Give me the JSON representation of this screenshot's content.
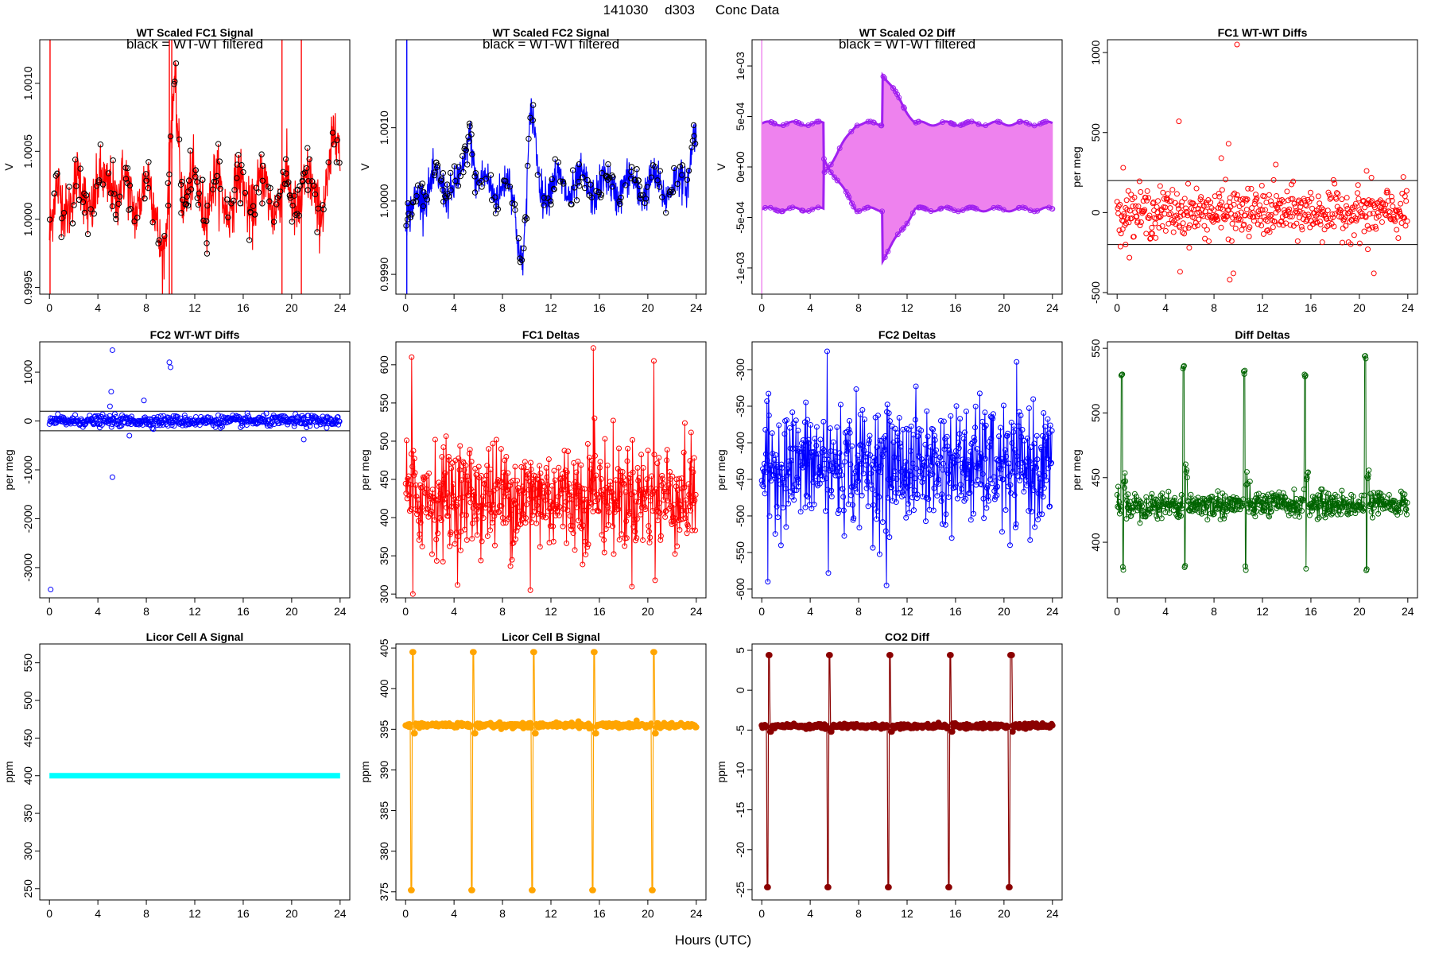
{
  "figure": {
    "title_parts": [
      "141030",
      "d303",
      "Conc Data"
    ],
    "xlabel": "Hours (UTC)"
  },
  "chart_data": [
    {
      "id": "p1",
      "type": "line",
      "title": "WT Scaled FC1 Signal",
      "annotation": "black = WT-WT filtered",
      "ylabel": "V",
      "xlim": [
        -0.8,
        24.8
      ],
      "ylim": [
        0.99945,
        1.00132
      ],
      "xticks": [
        0,
        4,
        8,
        12,
        16,
        20,
        24
      ],
      "yticks": [
        0.9995,
        1.0,
        1.0005,
        1.001
      ],
      "ytick_labels": [
        "0.9995",
        "1.0000",
        "1.0005",
        "1.0010"
      ],
      "color": "#ff0000",
      "overlay_color": "#000000",
      "series": {
        "style": "noise-band",
        "base": 1.00018,
        "amp": 0.00014,
        "period": 1.9,
        "noise": 0.00011,
        "events": [
          {
            "x": 0,
            "dy": -0.0003,
            "w": 0.5
          },
          {
            "x": 9.6,
            "dy": -0.00045,
            "w": 0.6
          },
          {
            "x": 10.3,
            "dy": 0.0008,
            "w": 0.5
          },
          {
            "x": 5.1,
            "dy": 0.0002,
            "w": 0.3
          },
          {
            "x": 23.7,
            "dy": 0.0005,
            "w": 0.4
          }
        ],
        "spikes": [
          0.05,
          9.9,
          10.1,
          19.2,
          20.8
        ]
      }
    },
    {
      "id": "p2",
      "type": "line",
      "title": "WT Scaled FC2 Signal",
      "annotation": "black = WT-WT filtered",
      "ylabel": "V",
      "xlim": [
        -0.8,
        24.8
      ],
      "ylim": [
        0.99873,
        1.0022
      ],
      "xticks": [
        0,
        4,
        8,
        12,
        16,
        20,
        24
      ],
      "yticks": [
        0.999,
        1.0,
        1.001
      ],
      "ytick_labels": [
        "0.9990",
        "1.0000",
        "1.0010"
      ],
      "color": "#0000ff",
      "overlay_color": "#000000",
      "series": {
        "style": "noise-band",
        "base": 1.0002,
        "amp": 0.00015,
        "period": 2.0,
        "noise": 0.00013,
        "events": [
          {
            "x": 0.3,
            "dy": -0.0005,
            "w": 0.6
          },
          {
            "x": 5.3,
            "dy": 0.0008,
            "w": 0.4
          },
          {
            "x": 9.8,
            "dy": -0.0012,
            "w": 0.7
          },
          {
            "x": 10.3,
            "dy": 0.0015,
            "w": 0.5
          },
          {
            "x": 23.8,
            "dy": 0.0008,
            "w": 0.4
          }
        ],
        "spikes": [
          0.1
        ]
      }
    },
    {
      "id": "p3",
      "type": "line",
      "title": "WT Scaled O2 Diff",
      "annotation": "black = WT-WT filtered",
      "ylabel": "V",
      "xlim": [
        -0.8,
        24.8
      ],
      "ylim": [
        -0.00126,
        0.00126
      ],
      "xticks": [
        0,
        4,
        8,
        12,
        16,
        20,
        24
      ],
      "yticks": [
        -0.001,
        -0.0005,
        0,
        0.0005,
        0.001
      ],
      "ytick_labels": [
        "-1e-03",
        "-5e-04",
        "0e+00",
        "5e-04",
        "1e-03"
      ],
      "color": "#ee82ee",
      "overlay_color": "#a020f0",
      "series": {
        "style": "two-level",
        "upper": 0.00043,
        "lower": -0.00042,
        "breaks": [
          5.1,
          9.95
        ],
        "rise": 2.7
      }
    },
    {
      "id": "p4",
      "type": "scatter",
      "title": "FC1 WT-WT Diffs",
      "ylabel": "per meg",
      "xlim": [
        -0.8,
        24.8
      ],
      "ylim": [
        -510,
        1080
      ],
      "xticks": [
        0,
        4,
        8,
        12,
        16,
        20,
        24
      ],
      "yticks": [
        -500,
        0,
        500,
        1000
      ],
      "ytick_labels": [
        "-500",
        "0",
        "500",
        "1000"
      ],
      "color": "#ff0000",
      "hlines": [
        200,
        -200
      ],
      "series": {
        "style": "scatter",
        "center": 0,
        "spread": 75,
        "n": 520,
        "outliers": [
          [
            0.5,
            280
          ],
          [
            5.1,
            570
          ],
          [
            9.9,
            1050
          ],
          [
            9.2,
            430
          ],
          [
            8.6,
            340
          ],
          [
            13.1,
            300
          ],
          [
            20.6,
            260
          ],
          [
            5.2,
            -370
          ],
          [
            9.3,
            -420
          ],
          [
            9.6,
            -380
          ],
          [
            21.2,
            -380
          ],
          [
            20.7,
            -230
          ],
          [
            0.7,
            -200
          ]
        ]
      }
    },
    {
      "id": "p5",
      "type": "scatter",
      "title": "FC2 WT-WT Diffs",
      "ylabel": "per meg",
      "xlim": [
        -0.8,
        24.8
      ],
      "ylim": [
        -3620,
        1620
      ],
      "xticks": [
        0,
        4,
        8,
        12,
        16,
        20,
        24
      ],
      "yticks": [
        -3000,
        -2000,
        -1000,
        0,
        1000
      ],
      "ytick_labels": [
        "-3000",
        "-2000",
        "-1000",
        "0",
        "1000"
      ],
      "color": "#0000ff",
      "hlines": [
        200,
        -200
      ],
      "series": {
        "style": "scatter",
        "center": 0,
        "spread": 55,
        "n": 520,
        "outliers": [
          [
            5.2,
            1450
          ],
          [
            9.9,
            1200
          ],
          [
            10.0,
            1100
          ],
          [
            5.1,
            600
          ],
          [
            7.8,
            420
          ],
          [
            5.0,
            300
          ],
          [
            0.1,
            -3450
          ],
          [
            5.2,
            -1150
          ],
          [
            21.0,
            -380
          ],
          [
            6.6,
            -300
          ]
        ]
      }
    },
    {
      "id": "p6",
      "type": "line",
      "title": "FC1 Deltas",
      "ylabel": "per meg",
      "xlim": [
        -0.8,
        24.8
      ],
      "ylim": [
        295,
        630
      ],
      "xticks": [
        0,
        4,
        8,
        12,
        16,
        20,
        24
      ],
      "yticks": [
        300,
        350,
        400,
        450,
        500,
        550,
        600
      ],
      "ytick_labels": [
        "300",
        "350",
        "400",
        "450",
        "500",
        "550",
        "600"
      ],
      "color": "#ff0000",
      "series": {
        "style": "noisy-points",
        "base": 428,
        "spread": 35,
        "n": 560,
        "spikes": [
          [
            0.5,
            610
          ],
          [
            15.5,
            622
          ],
          [
            20.5,
            605
          ],
          [
            15.6,
            530
          ],
          [
            0.6,
            300
          ],
          [
            10.3,
            305
          ],
          [
            20.6,
            318
          ]
        ]
      }
    },
    {
      "id": "p7",
      "type": "line",
      "title": "FC2 Deltas",
      "ylabel": "per meg",
      "xlim": [
        -0.8,
        24.8
      ],
      "ylim": [
        -612,
        -262
      ],
      "xticks": [
        0,
        4,
        8,
        12,
        16,
        20,
        24
      ],
      "yticks": [
        -600,
        -550,
        -500,
        -450,
        -400,
        -350,
        -300
      ],
      "ytick_labels": [
        "-600",
        "-550",
        "-500",
        "-450",
        "-400",
        "-350",
        "-300"
      ],
      "color": "#0000ff",
      "series": {
        "style": "noisy-points",
        "base": -432,
        "spread": 40,
        "n": 560,
        "spikes": [
          [
            5.4,
            -275
          ],
          [
            0.5,
            -590
          ],
          [
            10.3,
            -595
          ],
          [
            5.5,
            -578
          ],
          [
            20.5,
            -540
          ]
        ]
      }
    },
    {
      "id": "p8",
      "type": "line",
      "title": "Diff Deltas",
      "ylabel": "per meg",
      "xlim": [
        -0.8,
        24.8
      ],
      "ylim": [
        357,
        555
      ],
      "xticks": [
        0,
        4,
        8,
        12,
        16,
        20,
        24
      ],
      "yticks": [
        400,
        450,
        500,
        550
      ],
      "ytick_labels": [
        "400",
        "450",
        "500",
        "550"
      ],
      "color": "#006400",
      "series": {
        "style": "cal-spikes",
        "base": 429,
        "spread": 5,
        "n": 560,
        "hi": 532,
        "lo": 378,
        "spike_times": [
          0.4,
          5.5,
          10.5,
          15.5,
          20.5
        ],
        "hi_alt": [
          532,
          537,
          533,
          530,
          545
        ]
      }
    },
    {
      "id": "p9",
      "type": "line",
      "title": "Licor Cell A Signal",
      "ylabel": "ppm",
      "xlim": [
        -0.8,
        24.8
      ],
      "ylim": [
        235,
        575
      ],
      "xticks": [
        0,
        4,
        8,
        12,
        16,
        20,
        24
      ],
      "yticks": [
        250,
        300,
        350,
        400,
        450,
        500,
        550
      ],
      "ytick_labels": [
        "250",
        "300",
        "350",
        "400",
        "450",
        "500",
        "550"
      ],
      "color": "#00ffff",
      "series": {
        "style": "flat",
        "value": 400
      }
    },
    {
      "id": "p10",
      "type": "line",
      "title": "Licor Cell B Signal",
      "ylabel": "ppm",
      "xlim": [
        -0.8,
        24.8
      ],
      "ylim": [
        374.0,
        405.5
      ],
      "xticks": [
        0,
        4,
        8,
        12,
        16,
        20,
        24
      ],
      "yticks": [
        375,
        380,
        385,
        390,
        395,
        400,
        405
      ],
      "ytick_labels": [
        "375",
        "380",
        "385",
        "390",
        "395",
        "400",
        "405"
      ],
      "color": "#ffa500",
      "series": {
        "style": "licor",
        "base": 395.5,
        "spread": 0.15,
        "hi": 404.5,
        "lo": 375.2,
        "mid": 394.5,
        "spike_times": [
          0.4,
          5.4,
          10.4,
          15.4,
          20.3
        ]
      }
    },
    {
      "id": "p11",
      "type": "line",
      "title": "CO2 Diff",
      "ylabel": "ppm",
      "xlim": [
        -0.8,
        24.8
      ],
      "ylim": [
        -26.3,
        5.8
      ],
      "xticks": [
        0,
        4,
        8,
        12,
        16,
        20,
        24
      ],
      "yticks": [
        -25,
        -20,
        -15,
        -10,
        -5,
        0,
        5
      ],
      "ytick_labels": [
        "-25",
        "-20",
        "-15",
        "-10",
        "-5",
        "0",
        "5"
      ],
      "color": "#8b0000",
      "series": {
        "style": "licor",
        "base": -4.5,
        "spread": 0.15,
        "hi": 4.4,
        "lo": -24.7,
        "mid": -5.2,
        "spike_times": [
          0.4,
          5.4,
          10.4,
          15.4,
          20.4
        ]
      }
    }
  ]
}
